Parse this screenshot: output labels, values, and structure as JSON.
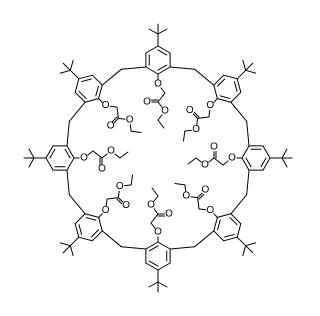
{
  "molecule": {
    "atom_labels": [
      "O",
      "O",
      "O",
      "O",
      "O",
      "O",
      "O",
      "O",
      "O",
      "O",
      "O",
      "O",
      "O",
      "O",
      "O",
      "O",
      "O",
      "O",
      "O",
      "O",
      "O",
      "O",
      "O",
      "O"
    ]
  }
}
